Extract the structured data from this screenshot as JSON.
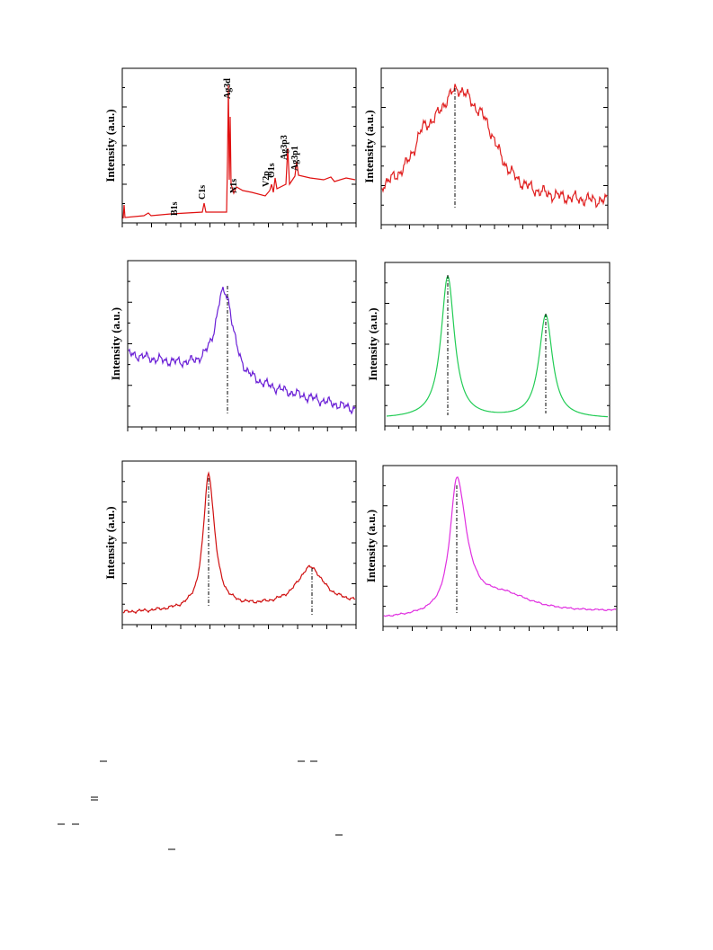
{
  "panels": [
    {
      "ylabel": "Intensity (a.u.)",
      "peak_labels": [
        "B1s",
        "C1s",
        "Ag3d",
        "N1s",
        "V2p",
        "O1s",
        "Ag3p3",
        "Ag3p1"
      ]
    },
    {
      "ylabel": "Intensity (a.u.)"
    },
    {
      "ylabel": "Intensity (a.u.)"
    },
    {
      "ylabel": "Intensity (a.u.)"
    },
    {
      "ylabel": "Intensity (a.u.)"
    },
    {
      "ylabel": "Intensity (a.u.)"
    }
  ]
}
